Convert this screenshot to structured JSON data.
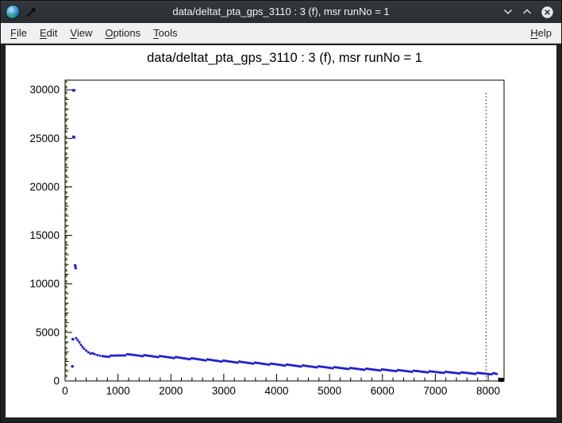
{
  "window": {
    "title": "data/deltat_pta_gps_3110 : 3 (f), msr runNo = 1"
  },
  "menu": {
    "items": [
      "File",
      "Edit",
      "View",
      "Options",
      "Tools"
    ],
    "right_items": [
      "Help"
    ]
  },
  "chart_data": {
    "type": "scatter",
    "title": "data/deltat_pta_gps_3110 : 3 (f), msr runNo = 1",
    "xlabel": "",
    "ylabel": "",
    "xlim": [
      0,
      8300
    ],
    "ylim": [
      0,
      31000
    ],
    "x_ticks": [
      0,
      1000,
      2000,
      3000,
      4000,
      5000,
      6000,
      7000,
      8000
    ],
    "x_minor_step": 200,
    "y_ticks": [
      0,
      5000,
      10000,
      15000,
      20000,
      25000,
      30000
    ],
    "y_minor_step": 1000,
    "grid": false,
    "legend": false,
    "marker_color": "#2222cc",
    "marker_shape": "square",
    "frame_color": "#000000",
    "outlier_points": [
      [
        158,
        29950
      ],
      [
        170,
        29950
      ],
      [
        158,
        25160
      ],
      [
        170,
        25100
      ],
      [
        190,
        11900
      ],
      [
        200,
        11640
      ],
      [
        148,
        4300
      ],
      [
        138,
        1500
      ]
    ],
    "band_points": [
      [
        210,
        4350
      ],
      [
        240,
        4150
      ],
      [
        270,
        3950
      ],
      [
        300,
        3700
      ],
      [
        330,
        3500
      ],
      [
        360,
        3330
      ],
      [
        400,
        3150
      ],
      [
        440,
        3000
      ],
      [
        480,
        2880
      ],
      [
        520,
        2790
      ],
      [
        560,
        2710
      ],
      [
        610,
        2640
      ],
      [
        660,
        2590
      ],
      [
        710,
        2560
      ],
      [
        770,
        2540
      ],
      [
        830,
        2540
      ],
      [
        890,
        2560
      ],
      [
        960,
        2600
      ],
      [
        1030,
        2640
      ],
      [
        1100,
        2670
      ],
      [
        1170,
        2690
      ],
      [
        1240,
        2690
      ],
      [
        1310,
        2670
      ],
      [
        1390,
        2640
      ],
      [
        1470,
        2610
      ],
      [
        1560,
        2580
      ],
      [
        1660,
        2545
      ],
      [
        1760,
        2515
      ],
      [
        1860,
        2485
      ],
      [
        1960,
        2450
      ],
      [
        2060,
        2415
      ],
      [
        2160,
        2375
      ],
      [
        2260,
        2335
      ],
      [
        2360,
        2295
      ],
      [
        2460,
        2255
      ],
      [
        2560,
        2215
      ],
      [
        2660,
        2175
      ],
      [
        2760,
        2135
      ],
      [
        2860,
        2095
      ],
      [
        2960,
        2055
      ],
      [
        3060,
        2015
      ],
      [
        3160,
        1980
      ],
      [
        3260,
        1945
      ],
      [
        3360,
        1910
      ],
      [
        3460,
        1875
      ],
      [
        3560,
        1840
      ],
      [
        3660,
        1805
      ],
      [
        3760,
        1770
      ],
      [
        3860,
        1738
      ],
      [
        3960,
        1705
      ],
      [
        4060,
        1672
      ],
      [
        4160,
        1640
      ],
      [
        4260,
        1608
      ],
      [
        4360,
        1576
      ],
      [
        4460,
        1545
      ],
      [
        4560,
        1515
      ],
      [
        4660,
        1485
      ],
      [
        4760,
        1455
      ],
      [
        4860,
        1426
      ],
      [
        4960,
        1397
      ],
      [
        5060,
        1369
      ],
      [
        5160,
        1341
      ],
      [
        5260,
        1314
      ],
      [
        5360,
        1287
      ],
      [
        5460,
        1261
      ],
      [
        5560,
        1235
      ],
      [
        5660,
        1210
      ],
      [
        5760,
        1185
      ],
      [
        5860,
        1161
      ],
      [
        5960,
        1137
      ],
      [
        6060,
        1114
      ],
      [
        6160,
        1091
      ],
      [
        6260,
        1068
      ],
      [
        6360,
        1046
      ],
      [
        6460,
        1025
      ],
      [
        6560,
        1004
      ],
      [
        6660,
        983
      ],
      [
        6760,
        963
      ],
      [
        6860,
        943
      ],
      [
        6960,
        924
      ],
      [
        7060,
        905
      ],
      [
        7160,
        886
      ],
      [
        7260,
        868
      ],
      [
        7360,
        850
      ],
      [
        7460,
        833
      ],
      [
        7560,
        816
      ],
      [
        7660,
        799
      ],
      [
        7760,
        783
      ],
      [
        7860,
        767
      ],
      [
        7960,
        751
      ],
      [
        8060,
        736
      ],
      [
        8160,
        721
      ]
    ],
    "vlines": [
      {
        "x": 16,
        "color": "#cc4444",
        "style": "dashed",
        "name": "t0-marker-line"
      },
      {
        "x": 30,
        "color": "#00a000",
        "style": "dashed",
        "name": "first-good-bin-line"
      },
      {
        "x": 7960,
        "color": "#2222cc",
        "style": "dotted",
        "name": "last-good-bin-line"
      }
    ],
    "end_marker": {
      "x": 8235,
      "y": 150,
      "color": "#000000"
    }
  }
}
